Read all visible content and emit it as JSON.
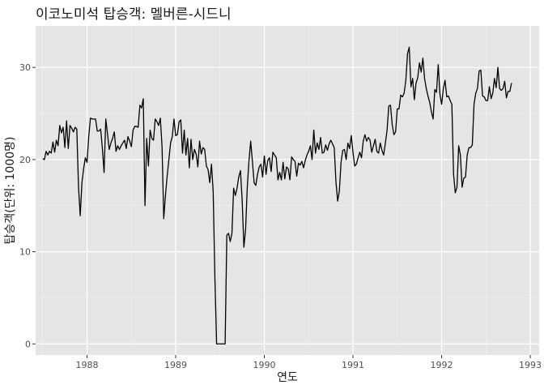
{
  "chart_data": {
    "type": "line",
    "title": "이코노미석 탑승객: 멜버른-시드니",
    "xlabel": "연도",
    "ylabel": "탑승객(단위: 1000명)",
    "xlim": [
      1987.42,
      1993.1
    ],
    "ylim": [
      -1.2,
      34.5
    ],
    "x_ticks": [
      1988,
      1989,
      1990,
      1991,
      1992,
      1993
    ],
    "y_ticks": [
      0,
      10,
      20,
      30
    ],
    "grid": true,
    "series": [
      {
        "x_start": 1987.5,
        "x_step": 0.019231,
        "values": [
          20.1,
          20.0,
          20.9,
          20.5,
          20.9,
          20.7,
          21.9,
          20.8,
          22.1,
          21.5,
          23.7,
          22.9,
          23.5,
          21.3,
          24.2,
          21.2,
          23.7,
          23.4,
          23.0,
          23.5,
          23.3,
          17.0,
          13.9,
          17.5,
          19.0,
          20.2,
          19.7,
          22.5,
          24.5,
          24.4,
          24.4,
          24.4,
          23.1,
          23.1,
          23.3,
          21.2,
          18.6,
          24.4,
          22.8,
          21.1,
          21.8,
          22.3,
          23.0,
          20.9,
          21.5,
          21.1,
          21.5,
          21.8,
          22.1,
          21.2,
          22.5,
          22.0,
          21.4,
          23.2,
          23.6,
          23.6,
          23.5,
          25.9,
          25.6,
          26.6,
          15.0,
          22.3,
          19.3,
          23.2,
          22.3,
          22.1,
          24.4,
          24.1,
          23.7,
          24.5,
          21.4,
          13.6,
          16.1,
          18.2,
          20.0,
          21.8,
          22.5,
          24.4,
          22.6,
          22.7,
          24.1,
          24.3,
          20.7,
          23.2,
          20.5,
          22.3,
          19.1,
          22.2,
          20.0,
          21.1,
          20.6,
          19.2,
          22.0,
          20.6,
          21.3,
          21.1,
          19.3,
          18.9,
          17.5,
          19.5,
          16.5,
          7.2,
          0.0,
          0.0,
          0.0,
          0.0,
          0.0,
          0.0,
          11.8,
          12.0,
          11.1,
          12.0,
          16.9,
          16.1,
          16.9,
          18.1,
          18.8,
          15.6,
          10.5,
          12.4,
          17.0,
          19.9,
          22.0,
          19.8,
          17.5,
          17.2,
          18.4,
          19.2,
          19.5,
          18.1,
          20.4,
          18.4,
          19.9,
          20.2,
          18.7,
          20.8,
          20.5,
          20.2,
          17.8,
          18.6,
          17.8,
          19.7,
          17.9,
          19.2,
          19.0,
          17.8,
          20.3,
          20.0,
          19.8,
          18.2,
          19.6,
          19.4,
          19.8,
          19.1,
          19.9,
          20.5,
          20.9,
          21.5,
          20.0,
          23.2,
          20.7,
          21.8,
          21.1,
          22.4,
          20.7,
          20.8,
          21.6,
          21.0,
          21.7,
          22.1,
          21.7,
          21.3,
          17.6,
          15.5,
          16.6,
          19.7,
          21.0,
          21.1,
          20.0,
          21.8,
          21.2,
          22.6,
          20.8,
          19.3,
          19.5,
          20.2,
          20.8,
          20.2,
          22.0,
          22.7,
          22.0,
          22.4,
          22.1,
          20.8,
          21.5,
          22.2,
          20.9,
          20.7,
          21.8,
          21.0,
          20.5,
          21.8,
          23.2,
          25.8,
          25.9,
          23.8,
          22.7,
          23.0,
          25.5,
          25.5,
          27.0,
          26.8,
          27.2,
          28.6,
          31.5,
          32.2,
          27.9,
          28.8,
          26.5,
          28.3,
          28.9,
          30.5,
          29.5,
          31.0,
          28.8,
          27.7,
          26.9,
          26.2,
          25.2,
          24.4,
          27.6,
          27.3,
          30.3,
          27.1,
          26.0,
          27.7,
          28.6,
          26.8,
          26.9,
          26.4,
          26.0,
          18.4,
          16.4,
          17.0,
          21.5,
          20.5,
          17.0,
          18.0,
          18.1,
          20.5,
          21.3,
          21.3,
          21.6,
          26.0,
          27.2,
          27.7,
          29.6,
          29.7,
          26.9,
          26.8,
          26.4,
          26.4,
          27.9,
          26.6,
          27.2,
          28.8,
          27.8,
          30.0,
          27.7,
          27.5,
          27.7,
          28.5,
          26.7,
          27.4,
          27.4,
          28.3
        ]
      }
    ]
  }
}
